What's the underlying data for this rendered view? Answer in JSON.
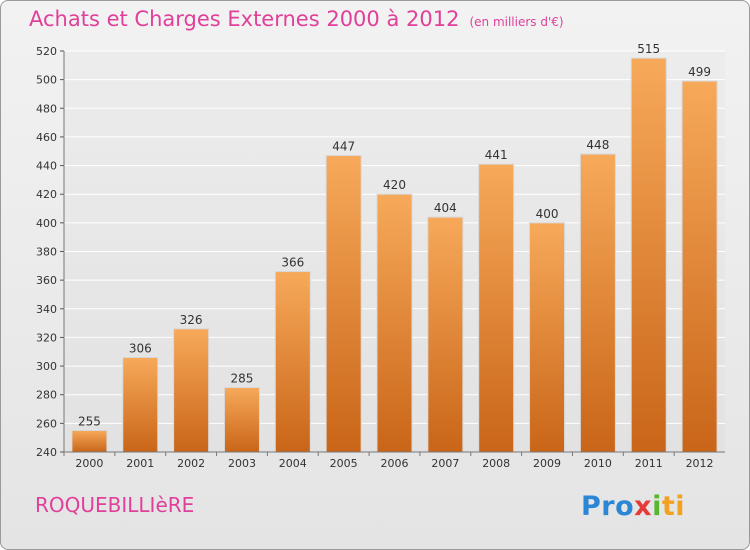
{
  "title": "Achats et Charges Externes 2000 à 2012",
  "subtitle": "(en milliers d'€)",
  "commune": "ROQUEBILLIèRE",
  "logo": {
    "text": "Proxiti",
    "parts": [
      "Pro",
      "x",
      "i",
      "ti"
    ]
  },
  "colors": {
    "title": "#e0409a",
    "bar_light": "#f7a95a",
    "bar_dark": "#c96518",
    "grid": "#ffffff",
    "background": "#e9e9e9"
  },
  "chart_data": {
    "type": "bar",
    "title": "Achats et Charges Externes 2000 à 2012",
    "xlabel": "",
    "ylabel": "",
    "ylim": [
      240,
      520
    ],
    "yticks": [
      240,
      260,
      280,
      300,
      320,
      340,
      360,
      380,
      400,
      420,
      440,
      460,
      480,
      500,
      520
    ],
    "grid": true,
    "categories": [
      "2000",
      "2001",
      "2002",
      "2003",
      "2004",
      "2005",
      "2006",
      "2007",
      "2008",
      "2009",
      "2010",
      "2011",
      "2012"
    ],
    "values": [
      255,
      306,
      326,
      285,
      366,
      447,
      420,
      404,
      441,
      400,
      448,
      515,
      499
    ]
  }
}
